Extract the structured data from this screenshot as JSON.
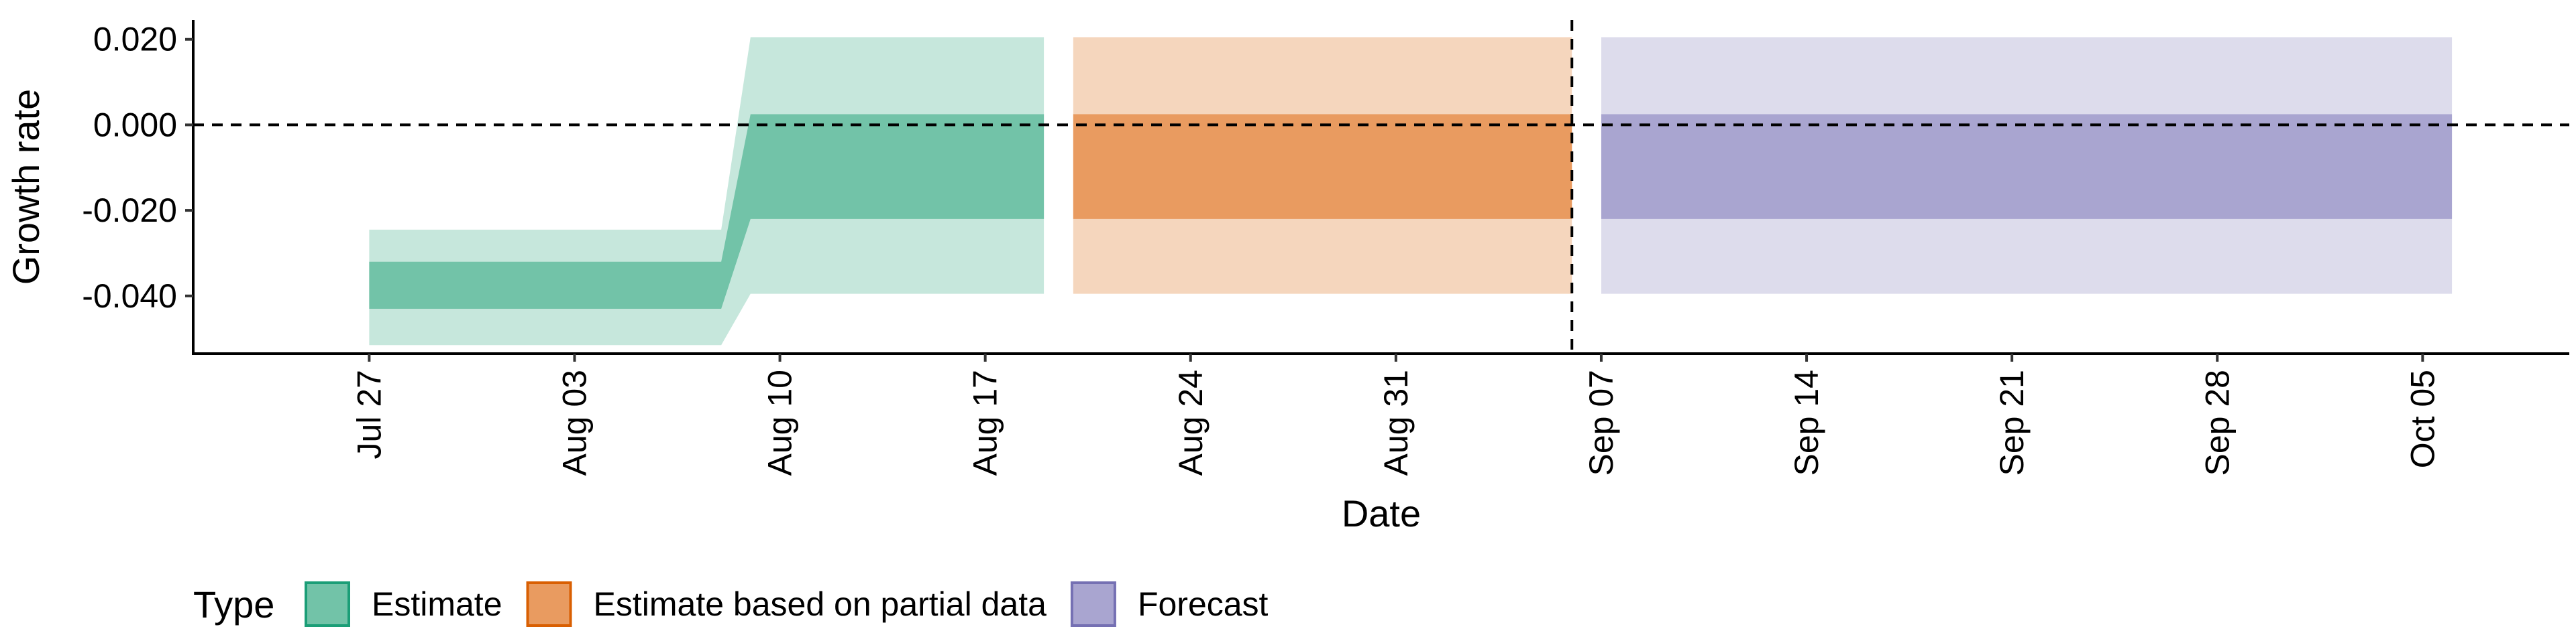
{
  "chart_data": {
    "type": "area",
    "xlabel": "Date",
    "ylabel": "Growth rate",
    "x_range": [
      "2020-07-21",
      "2020-10-10"
    ],
    "y_range": [
      -0.0535,
      0.0245
    ],
    "y_ticks": [
      -0.04,
      -0.02,
      0.0,
      0.02
    ],
    "y_tick_labels": [
      "-0.040",
      "-0.020",
      "0.000",
      "0.020"
    ],
    "x_ticks": [
      "2020-07-27",
      "2020-08-03",
      "2020-08-10",
      "2020-08-17",
      "2020-08-24",
      "2020-08-31",
      "2020-09-07",
      "2020-09-14",
      "2020-09-21",
      "2020-09-28",
      "2020-10-05"
    ],
    "x_tick_labels": [
      "Jul 27",
      "Aug 03",
      "Aug 10",
      "Aug 17",
      "Aug 24",
      "Aug 31",
      "Sep 07",
      "Sep 14",
      "Sep 21",
      "Sep 28",
      "Oct 05"
    ],
    "reference_lines": {
      "horizontal_y": 0.0,
      "vertical_date": "2020-09-06",
      "style": "dashed"
    },
    "grid": false,
    "legend": {
      "title": "Type",
      "position": "bottom-left",
      "entries": [
        {
          "label": "Estimate",
          "fill": "#72c3a8",
          "stroke": "#1b9e77"
        },
        {
          "label": "Estimate based on partial data",
          "fill": "#e99b60",
          "stroke": "#d95f02"
        },
        {
          "label": "Forecast",
          "fill": "#a9a5d0",
          "stroke": "#7570b3"
        }
      ]
    },
    "series": [
      {
        "name": "Estimate",
        "inner_color": "#72c3a8",
        "outer_color": "#c6e7dc",
        "points": [
          {
            "date": "2020-07-27",
            "outer_lo": -0.0515,
            "outer_hi": -0.0245,
            "inner_lo": -0.043,
            "inner_hi": -0.032
          },
          {
            "date": "2020-08-08",
            "outer_lo": -0.0515,
            "outer_hi": -0.0245,
            "inner_lo": -0.043,
            "inner_hi": -0.032
          },
          {
            "date": "2020-08-09",
            "outer_lo": -0.0395,
            "outer_hi": 0.0205,
            "inner_lo": -0.022,
            "inner_hi": 0.0025
          },
          {
            "date": "2020-08-19",
            "outer_lo": -0.0395,
            "outer_hi": 0.0205,
            "inner_lo": -0.022,
            "inner_hi": 0.0025
          }
        ]
      },
      {
        "name": "Estimate based on partial data",
        "inner_color": "#e99b60",
        "outer_color": "#f5d6bd",
        "points": [
          {
            "date": "2020-08-20",
            "outer_lo": -0.0395,
            "outer_hi": 0.0205,
            "inner_lo": -0.022,
            "inner_hi": 0.0025
          },
          {
            "date": "2020-09-06",
            "outer_lo": -0.0395,
            "outer_hi": 0.0205,
            "inner_lo": -0.022,
            "inner_hi": 0.0025
          }
        ]
      },
      {
        "name": "Forecast",
        "inner_color": "#a9a5d0",
        "outer_color": "#dddcec",
        "points": [
          {
            "date": "2020-09-07",
            "outer_lo": -0.0395,
            "outer_hi": 0.0205,
            "inner_lo": -0.022,
            "inner_hi": 0.0025
          },
          {
            "date": "2020-10-06",
            "outer_lo": -0.0395,
            "outer_hi": 0.0205,
            "inner_lo": -0.022,
            "inner_hi": 0.0025
          }
        ]
      }
    ]
  }
}
